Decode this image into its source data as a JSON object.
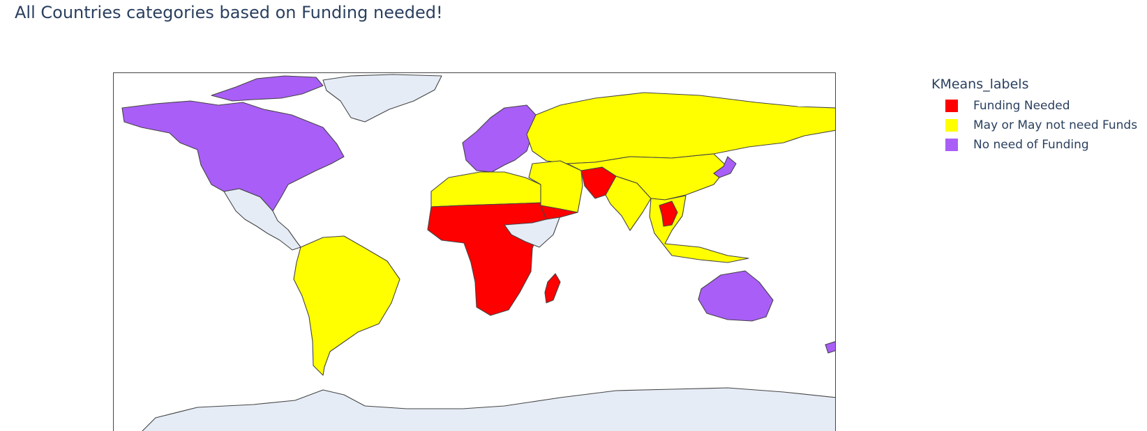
{
  "figure": {
    "title": "All Countries categories based on Funding needed!",
    "no_data_color": "#e5ecf6",
    "border_color": "#444444"
  },
  "legend": {
    "title": "KMeans_labels",
    "items": [
      {
        "label": "Funding Needed",
        "color": "#ff0000"
      },
      {
        "label": "May or May not need Funds",
        "color": "#ffff00"
      },
      {
        "label": "No need of Funding",
        "color": "#a95ef7"
      }
    ]
  },
  "map_data": {
    "type": "choropleth",
    "projection": "equirectangular",
    "color_by": "KMeans_labels",
    "regions": [
      {
        "region": "North America (Canada, USA)",
        "category": "No need of Funding"
      },
      {
        "region": "Greenland",
        "category": "no data"
      },
      {
        "region": "Mexico & Central America",
        "category": "no data"
      },
      {
        "region": "South America",
        "category": "May or May not need Funds"
      },
      {
        "region": "Western Europe & Scandinavia",
        "category": "No need of Funding"
      },
      {
        "region": "Eastern Europe & Russia",
        "category": "May or May not need Funds"
      },
      {
        "region": "North Africa",
        "category": "May or May not need Funds"
      },
      {
        "region": "Sub-Saharan Africa",
        "category": "Funding Needed"
      },
      {
        "region": "Horn of Africa",
        "category": "no data"
      },
      {
        "region": "Madagascar",
        "category": "Funding Needed"
      },
      {
        "region": "Middle East",
        "category": "May or May not need Funds"
      },
      {
        "region": "Yemen",
        "category": "Funding Needed"
      },
      {
        "region": "Afghanistan & Pakistan",
        "category": "Funding Needed"
      },
      {
        "region": "India",
        "category": "May or May not need Funds"
      },
      {
        "region": "China & Central Asia",
        "category": "May or May not need Funds"
      },
      {
        "region": "Japan",
        "category": "No need of Funding"
      },
      {
        "region": "Southeast Asia",
        "category": "May or May not need Funds"
      },
      {
        "region": "Laos & Cambodia",
        "category": "Funding Needed"
      },
      {
        "region": "Australia",
        "category": "No need of Funding"
      },
      {
        "region": "New Zealand",
        "category": "No need of Funding"
      },
      {
        "region": "Antarctica",
        "category": "no data"
      }
    ]
  }
}
